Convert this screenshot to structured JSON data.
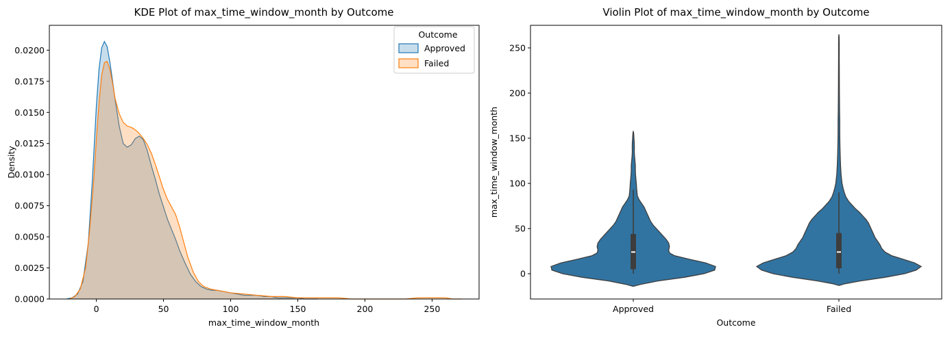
{
  "colors": {
    "approved": "#1f77b4",
    "failed": "#ff7f0e",
    "violin_fill": "#3274a1",
    "box": "#3d3d3d",
    "median": "#ffffff",
    "overlap_gray": "#c4c2bd"
  },
  "chart_data": [
    {
      "type": "area",
      "title": "KDE Plot of max_time_window_month by Outcome",
      "xlabel": "max_time_window_month",
      "ylabel": "Density",
      "xlim": [
        -35,
        285
      ],
      "ylim": [
        0,
        0.022
      ],
      "xticks": [
        0,
        50,
        100,
        150,
        200,
        250
      ],
      "xtick_labels": [
        "0",
        "50",
        "100",
        "150",
        "200",
        "250"
      ],
      "yticks": [
        0,
        0.0025,
        0.005,
        0.0075,
        0.01,
        0.0125,
        0.015,
        0.0175,
        0.02
      ],
      "ytick_labels": [
        "0.0000",
        "0.0025",
        "0.0050",
        "0.0075",
        "0.0100",
        "0.0125",
        "0.0150",
        "0.0175",
        "0.0200"
      ],
      "legend": {
        "title": "Outcome",
        "position": "upper right",
        "entries": [
          "Approved",
          "Failed"
        ]
      },
      "series": [
        {
          "name": "Approved",
          "color": "#1f77b4",
          "x": [
            -22,
            -18,
            -14,
            -10,
            -6,
            -3,
            0,
            2,
            4,
            6,
            8,
            10,
            12,
            14,
            17,
            20,
            23,
            26,
            29,
            32,
            35,
            38,
            41,
            44,
            47,
            50,
            53,
            56,
            59,
            62,
            66,
            70,
            74,
            78,
            82,
            86,
            90,
            95,
            100,
            105,
            110,
            115,
            120,
            125,
            130,
            135,
            140,
            145,
            150,
            155,
            160,
            165
          ],
          "y": [
            0.0,
            0.0001,
            0.0004,
            0.0014,
            0.0045,
            0.0095,
            0.0155,
            0.0185,
            0.0202,
            0.0207,
            0.0203,
            0.0191,
            0.0176,
            0.016,
            0.0139,
            0.0125,
            0.0122,
            0.0124,
            0.0129,
            0.0131,
            0.0128,
            0.0119,
            0.0107,
            0.0096,
            0.0084,
            0.0074,
            0.0064,
            0.0056,
            0.0048,
            0.0039,
            0.0029,
            0.002,
            0.0014,
            0.001,
            0.0008,
            0.0007,
            0.0007,
            0.0006,
            0.0005,
            0.0004,
            0.0003,
            0.0003,
            0.0003,
            0.0002,
            0.0002,
            0.0001,
            0.0001,
            0.0001,
            0.0001,
            0.0,
            0.0,
            0.0
          ]
        },
        {
          "name": "Failed",
          "color": "#ff7f0e",
          "x": [
            -20,
            -16,
            -12,
            -8,
            -5,
            -2,
            0,
            2,
            4,
            6,
            8,
            10,
            12,
            14,
            17,
            20,
            23,
            26,
            29,
            32,
            35,
            38,
            41,
            44,
            47,
            50,
            53,
            56,
            59,
            62,
            65,
            68,
            72,
            76,
            80,
            85,
            90,
            95,
            100,
            110,
            120,
            130,
            140,
            150,
            160,
            170,
            180,
            190,
            200,
            210,
            220,
            230,
            240,
            245,
            250,
            255,
            260,
            265,
            272
          ],
          "y": [
            0.0,
            0.0002,
            0.0008,
            0.0025,
            0.0055,
            0.0095,
            0.0128,
            0.0158,
            0.018,
            0.019,
            0.0191,
            0.0185,
            0.0174,
            0.0161,
            0.0149,
            0.0142,
            0.0139,
            0.0138,
            0.0136,
            0.0133,
            0.0129,
            0.0124,
            0.0117,
            0.0108,
            0.0098,
            0.0088,
            0.008,
            0.0074,
            0.0068,
            0.0058,
            0.0046,
            0.0034,
            0.0022,
            0.0014,
            0.001,
            0.0008,
            0.0007,
            0.0006,
            0.0005,
            0.0004,
            0.0003,
            0.0002,
            0.0002,
            0.0001,
            0.0001,
            0.0001,
            0.0001,
            0.0,
            0.0,
            0.0,
            0.0,
            0.0,
            0.0001,
            0.0001,
            0.0001,
            0.0001,
            0.0001,
            0.0,
            0.0
          ]
        }
      ]
    },
    {
      "type": "violin",
      "title": "Violin Plot of max_time_window_month by Outcome",
      "xlabel": "Outcome",
      "ylabel": "max_time_window_month",
      "categories": [
        "Approved",
        "Failed"
      ],
      "ylim": [
        -28,
        275
      ],
      "yticks": [
        0,
        50,
        100,
        150,
        200,
        250
      ],
      "ytick_labels": [
        "0",
        "50",
        "100",
        "150",
        "200",
        "250"
      ],
      "violins": [
        {
          "name": "Approved",
          "profile": [
            [
              -14,
              0.0
            ],
            [
              -12,
              0.08
            ],
            [
              -8,
              0.3
            ],
            [
              -4,
              0.62
            ],
            [
              0,
              0.86
            ],
            [
              4,
              0.99
            ],
            [
              8,
              1.0
            ],
            [
              12,
              0.88
            ],
            [
              16,
              0.68
            ],
            [
              20,
              0.5
            ],
            [
              23,
              0.44
            ],
            [
              26,
              0.43
            ],
            [
              30,
              0.44
            ],
            [
              34,
              0.43
            ],
            [
              38,
              0.4
            ],
            [
              42,
              0.36
            ],
            [
              46,
              0.32
            ],
            [
              50,
              0.28
            ],
            [
              54,
              0.24
            ],
            [
              58,
              0.21
            ],
            [
              62,
              0.19
            ],
            [
              66,
              0.17
            ],
            [
              70,
              0.15
            ],
            [
              74,
              0.13
            ],
            [
              78,
              0.1
            ],
            [
              82,
              0.07
            ],
            [
              86,
              0.05
            ],
            [
              90,
              0.045
            ],
            [
              95,
              0.04
            ],
            [
              100,
              0.037
            ],
            [
              105,
              0.032
            ],
            [
              110,
              0.027
            ],
            [
              115,
              0.025
            ],
            [
              120,
              0.025
            ],
            [
              125,
              0.02
            ],
            [
              130,
              0.015
            ],
            [
              135,
              0.012
            ],
            [
              140,
              0.013
            ],
            [
              145,
              0.012
            ],
            [
              150,
              0.008
            ],
            [
              155,
              0.005
            ],
            [
              158,
              0.0
            ]
          ],
          "whisker": [
            0,
            93
          ],
          "q1": 5,
          "median": 24,
          "q3": 44
        },
        {
          "name": "Failed",
          "profile": [
            [
              -13,
              0.0
            ],
            [
              -11,
              0.08
            ],
            [
              -8,
              0.26
            ],
            [
              -4,
              0.56
            ],
            [
              0,
              0.8
            ],
            [
              4,
              0.94
            ],
            [
              8,
              1.0
            ],
            [
              12,
              0.92
            ],
            [
              16,
              0.78
            ],
            [
              20,
              0.64
            ],
            [
              24,
              0.56
            ],
            [
              28,
              0.52
            ],
            [
              32,
              0.5
            ],
            [
              36,
              0.47
            ],
            [
              40,
              0.44
            ],
            [
              44,
              0.42
            ],
            [
              48,
              0.4
            ],
            [
              52,
              0.38
            ],
            [
              56,
              0.36
            ],
            [
              60,
              0.33
            ],
            [
              64,
              0.29
            ],
            [
              68,
              0.25
            ],
            [
              72,
              0.2
            ],
            [
              76,
              0.16
            ],
            [
              80,
              0.12
            ],
            [
              85,
              0.085
            ],
            [
              90,
              0.065
            ],
            [
              95,
              0.05
            ],
            [
              100,
              0.038
            ],
            [
              110,
              0.026
            ],
            [
              120,
              0.02
            ],
            [
              130,
              0.016
            ],
            [
              140,
              0.013
            ],
            [
              150,
              0.011
            ],
            [
              160,
              0.01
            ],
            [
              170,
              0.01
            ],
            [
              180,
              0.008
            ],
            [
              200,
              0.006
            ],
            [
              220,
              0.005
            ],
            [
              240,
              0.004
            ],
            [
              255,
              0.004
            ],
            [
              262,
              0.003
            ],
            [
              265,
              0.0
            ]
          ],
          "whisker": [
            0,
            90
          ],
          "q1": 6,
          "median": 24,
          "q3": 45
        }
      ]
    }
  ]
}
